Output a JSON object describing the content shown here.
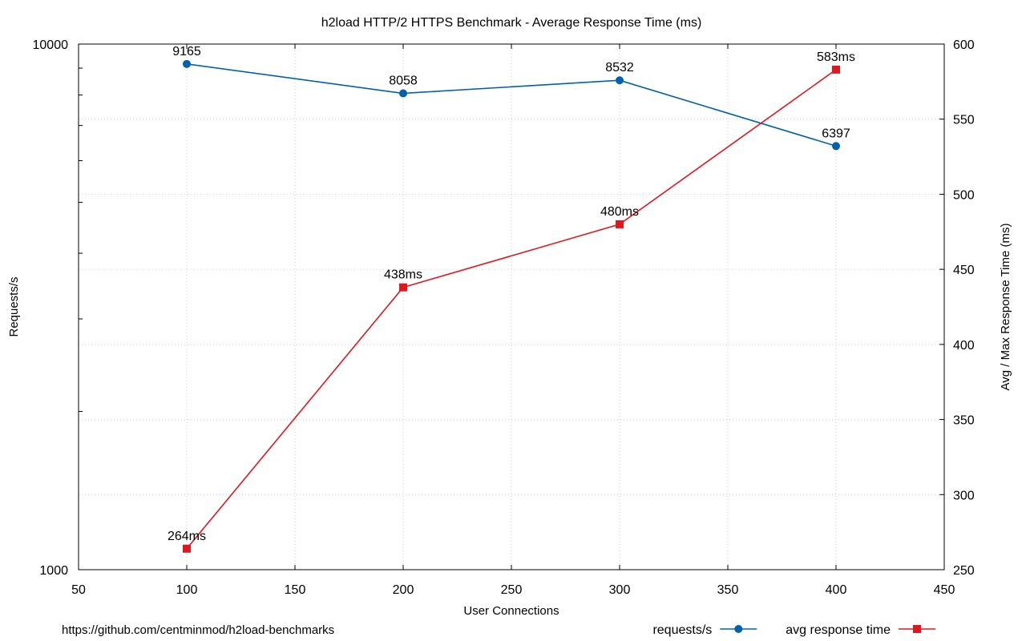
{
  "chart_data": {
    "type": "line",
    "title": "h2load HTTP/2 HTTPS Benchmark - Average Response Time (ms)",
    "xlabel": "User Connections",
    "ylabel": "Requests/s",
    "y2label": "Avg / Max Response Time (ms)",
    "x": [
      100,
      200,
      300,
      400
    ],
    "xlim": [
      50,
      450
    ],
    "x_ticks": [
      "50",
      "100",
      "150",
      "200",
      "250",
      "300",
      "350",
      "400",
      "450"
    ],
    "ylim": [
      1000,
      10000
    ],
    "y_scale": "log",
    "y_ticks": [
      "1000",
      "10000"
    ],
    "y2lim": [
      250,
      600
    ],
    "y2_ticks": [
      "250",
      "300",
      "350",
      "400",
      "450",
      "500",
      "550",
      "600"
    ],
    "grid": true,
    "legend_position": "bottom-right",
    "series": [
      {
        "name": "requests/s",
        "axis": "left",
        "color": "#0060ad",
        "marker": "circle",
        "values": [
          9165,
          8058,
          8532,
          6397
        ],
        "labels": [
          "9165",
          "8058",
          "8532",
          "6397"
        ]
      },
      {
        "name": "avg response time",
        "axis": "right",
        "color": "#dd181f",
        "marker": "square",
        "values": [
          264,
          438,
          480,
          583
        ],
        "labels": [
          "264ms",
          "438ms",
          "480ms",
          "583ms"
        ]
      }
    ]
  },
  "footer": {
    "source": "https://github.com/centminmod/h2load-benchmarks"
  }
}
